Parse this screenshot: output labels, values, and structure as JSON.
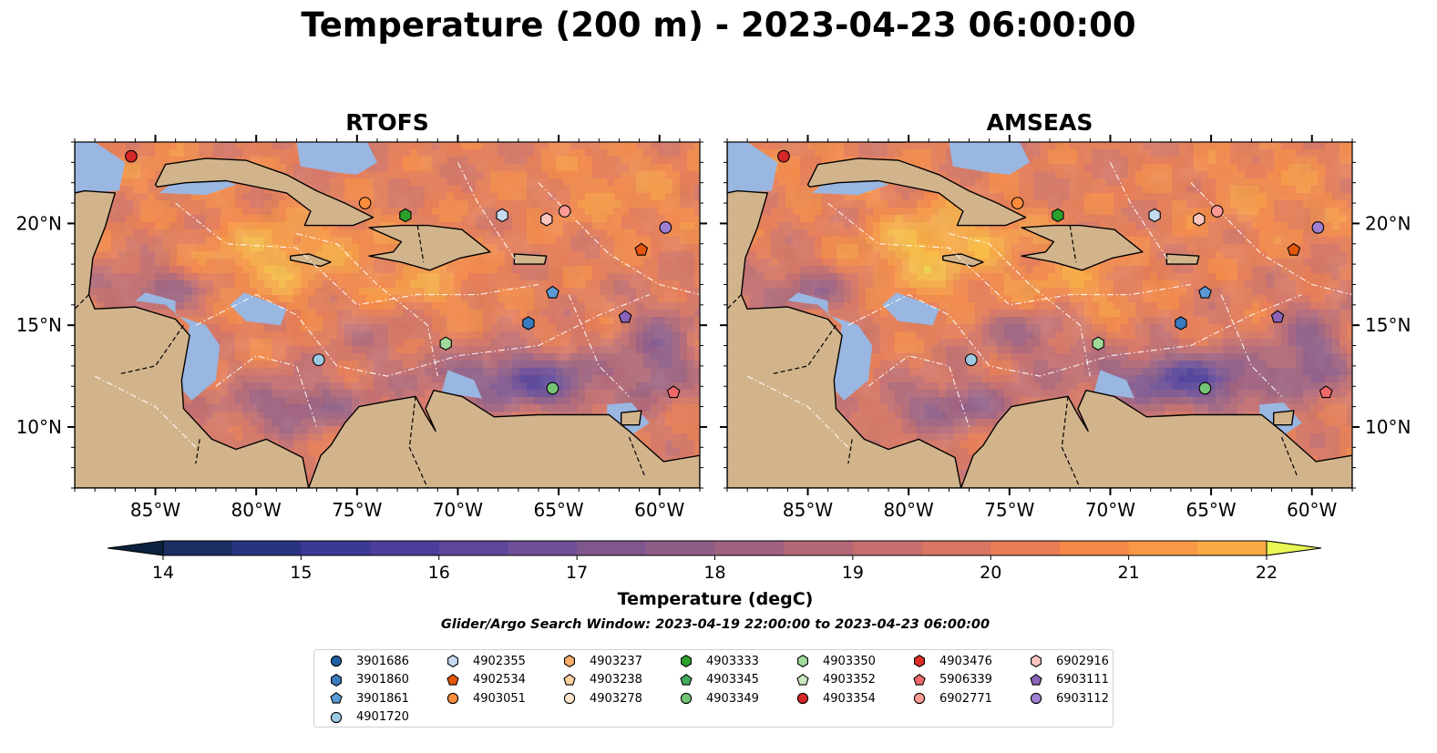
{
  "title": "Temperature (200 m) - 2023-04-23 06:00:00",
  "panels": [
    {
      "title": "RTOFS"
    },
    {
      "title": "AMSEAS"
    }
  ],
  "map_extent": {
    "lon": [
      -89,
      -58
    ],
    "lat": [
      7,
      24
    ]
  },
  "x_ticks": [
    "85°W",
    "80°W",
    "75°W",
    "70°W",
    "65°W",
    "60°W"
  ],
  "x_tick_values": [
    -85,
    -80,
    -75,
    -70,
    -65,
    -60
  ],
  "y_ticks": [
    "20°N",
    "15°N",
    "10°N"
  ],
  "y_tick_values": [
    20,
    15,
    10
  ],
  "colors": {
    "land": "#d2b48c",
    "shelf_water": "#99b7e1",
    "colormap": [
      "#0c2240",
      "#1c2f63",
      "#2a3380",
      "#3b3896",
      "#4c3d9c",
      "#5c479b",
      "#6f4f98",
      "#80568e",
      "#905c88",
      "#a0617f",
      "#b36877",
      "#c66e6f",
      "#d87563",
      "#e87c55",
      "#f58848",
      "#f99945",
      "#faab44",
      "#fbbd43",
      "#f5d848",
      "#e8f754"
    ]
  },
  "colorbar": {
    "label": "Temperature (degC)",
    "ticks": [
      "14",
      "15",
      "16",
      "17",
      "18",
      "19",
      "20",
      "21",
      "22"
    ],
    "min": 14,
    "max": 22,
    "step": 0.5
  },
  "search_window": "Glider/Argo Search Window: 2023-04-19 22:00:00 to 2023-04-23 06:00:00",
  "legend": [
    {
      "id": "3901686",
      "color": "#1f5fa0",
      "shape": "circle"
    },
    {
      "id": "3901860",
      "color": "#3a7bbf",
      "shape": "hexagon"
    },
    {
      "id": "3901861",
      "color": "#5b9bd5",
      "shape": "pentagon"
    },
    {
      "id": "4901720",
      "color": "#9ecae1",
      "shape": "circle"
    },
    {
      "id": "4902355",
      "color": "#c6dbef",
      "shape": "hexagon"
    },
    {
      "id": "4902534",
      "color": "#e6550d",
      "shape": "pentagon"
    },
    {
      "id": "4903051",
      "color": "#fd8d3c",
      "shape": "circle"
    },
    {
      "id": "4903237",
      "color": "#fdae6b",
      "shape": "hexagon"
    },
    {
      "id": "4903238",
      "color": "#fdd0a2",
      "shape": "pentagon"
    },
    {
      "id": "4903278",
      "color": "#fee6ce",
      "shape": "circle"
    },
    {
      "id": "4903333",
      "color": "#2ca02c",
      "shape": "hexagon"
    },
    {
      "id": "4903345",
      "color": "#41ab5d",
      "shape": "pentagon"
    },
    {
      "id": "4903349",
      "color": "#74c476",
      "shape": "circle"
    },
    {
      "id": "4903350",
      "color": "#a1d99b",
      "shape": "hexagon"
    },
    {
      "id": "4903352",
      "color": "#c7e9c0",
      "shape": "pentagon"
    },
    {
      "id": "4903354",
      "color": "#d62728",
      "shape": "circle"
    },
    {
      "id": "4903476",
      "color": "#de2d26",
      "shape": "hexagon"
    },
    {
      "id": "5906339",
      "color": "#f0696a",
      "shape": "pentagon"
    },
    {
      "id": "6902771",
      "color": "#fc9a96",
      "shape": "circle"
    },
    {
      "id": "6902916",
      "color": "#fcc5c0",
      "shape": "hexagon"
    },
    {
      "id": "6903111",
      "color": "#8a63b8",
      "shape": "pentagon"
    },
    {
      "id": "6903112",
      "color": "#9e7fd0",
      "shape": "circle"
    }
  ],
  "markers": [
    {
      "id": "4903354",
      "lon": -86.2,
      "lat": 23.3
    },
    {
      "id": "4903051",
      "lon": -74.6,
      "lat": 21.0
    },
    {
      "id": "4903333",
      "lon": -72.6,
      "lat": 20.4
    },
    {
      "id": "4902355",
      "lon": -67.8,
      "lat": 20.4
    },
    {
      "id": "6902916",
      "lon": -65.6,
      "lat": 20.2
    },
    {
      "id": "6902771",
      "lon": -64.7,
      "lat": 20.6
    },
    {
      "id": "6903112",
      "lon": -59.7,
      "lat": 19.8
    },
    {
      "id": "4902534",
      "lon": -60.9,
      "lat": 18.7
    },
    {
      "id": "3901861",
      "lon": -65.3,
      "lat": 16.6
    },
    {
      "id": "3901860",
      "lon": -66.5,
      "lat": 15.1
    },
    {
      "id": "6903111",
      "lon": -61.7,
      "lat": 15.4
    },
    {
      "id": "4903350",
      "lon": -70.6,
      "lat": 14.1
    },
    {
      "id": "4901720",
      "lon": -76.9,
      "lat": 13.3
    },
    {
      "id": "4903349",
      "lon": -65.3,
      "lat": 11.9
    },
    {
      "id": "5906339",
      "lon": -59.3,
      "lat": 11.7
    }
  ]
}
